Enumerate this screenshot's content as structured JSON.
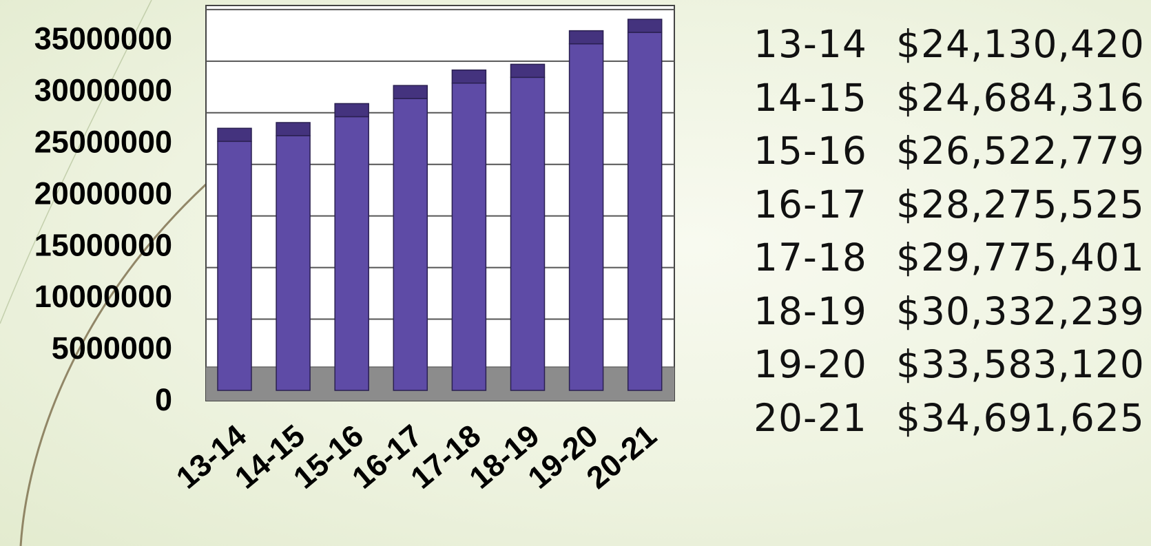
{
  "chart_data": {
    "type": "bar",
    "categories": [
      "13-14",
      "14-15",
      "15-16",
      "16-17",
      "17-18",
      "18-19",
      "19-20",
      "20-21"
    ],
    "values": [
      24130420,
      24684316,
      26522779,
      28275525,
      29775401,
      30332239,
      33583120,
      34691625
    ],
    "title": "",
    "xlabel": "",
    "ylabel": "",
    "ylim": [
      0,
      37500000
    ],
    "yticks": [
      0,
      5000000,
      10000000,
      15000000,
      20000000,
      25000000,
      30000000,
      35000000
    ],
    "ytick_labels": [
      "0",
      "5000000",
      "10000000",
      "15000000",
      "20000000",
      "25000000",
      "30000000",
      "35000000"
    ],
    "grid": true,
    "style": "3d",
    "colors": {
      "bar": "#5e4ba6",
      "bar_top": "#44337e",
      "floor": "#8c8c8c",
      "plot_bg": "#ffffff",
      "gridline": "#555555"
    }
  },
  "value_table": [
    {
      "year": "13-14",
      "amount": "$24,130,420"
    },
    {
      "year": "14-15",
      "amount": "$24,684,316"
    },
    {
      "year": "15-16",
      "amount": "$26,522,779"
    },
    {
      "year": "16-17",
      "amount": "$28,275,525"
    },
    {
      "year": "17-18",
      "amount": "$29,775,401"
    },
    {
      "year": "18-19",
      "amount": "$30,332,239"
    },
    {
      "year": "19-20",
      "amount": "$33,583,120"
    },
    {
      "year": "20-21",
      "amount": "$34,691,625"
    }
  ]
}
